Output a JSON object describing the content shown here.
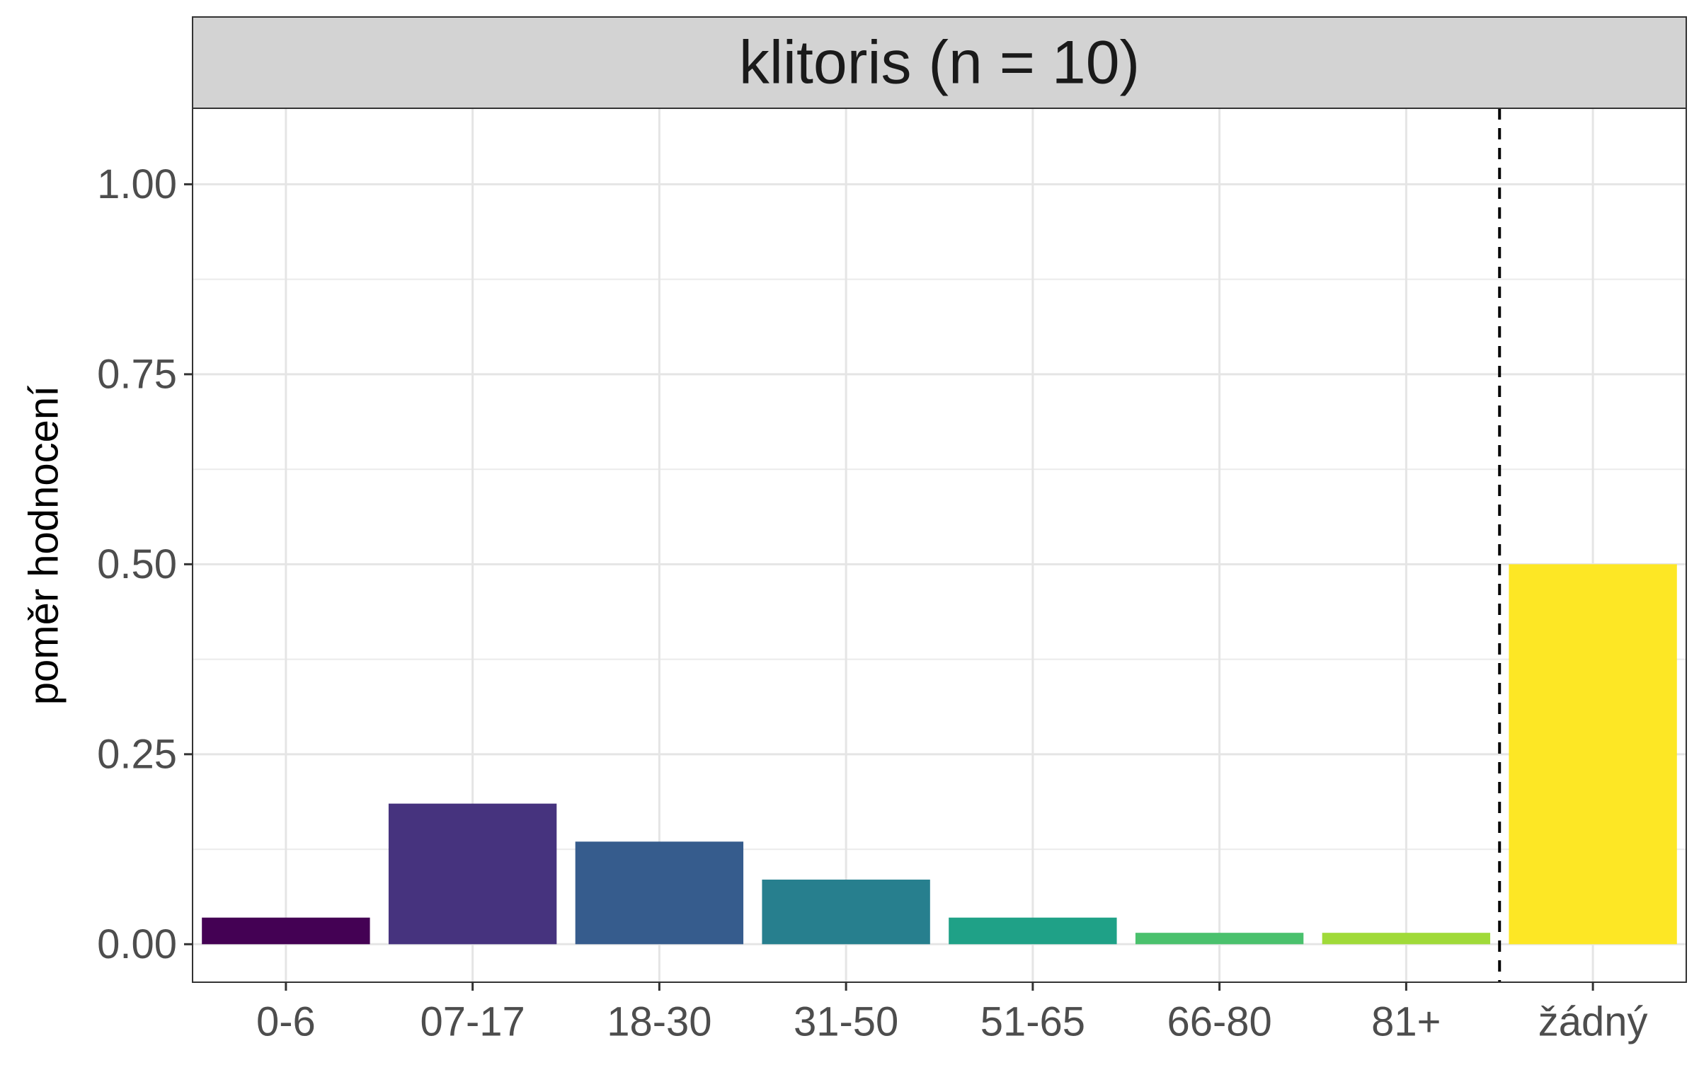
{
  "chart_data": {
    "type": "bar",
    "title": "klitoris (n = 10)",
    "xlabel": "",
    "ylabel": "poměr hodnocení",
    "categories": [
      "0-6",
      "07-17",
      "18-30",
      "31-50",
      "51-65",
      "66-80",
      "81+",
      "žádný"
    ],
    "values": [
      0.035,
      0.185,
      0.135,
      0.085,
      0.035,
      0.015,
      0.015,
      0.5
    ],
    "colors": [
      "#440154",
      "#46337E",
      "#365C8D",
      "#277F8E",
      "#1FA187",
      "#4AC16D",
      "#A0DA39",
      "#FDE725"
    ],
    "ylim": [
      -0.05,
      1.1
    ],
    "yticks": [
      0.0,
      0.25,
      0.5,
      0.75,
      1.0
    ],
    "ytick_labels": [
      "0.00",
      "0.25",
      "0.50",
      "0.75",
      "1.00"
    ],
    "grid": true,
    "separator_between_categories": [
      "81+",
      "žádný"
    ],
    "facet_strip_color": "#D3D3D3"
  }
}
